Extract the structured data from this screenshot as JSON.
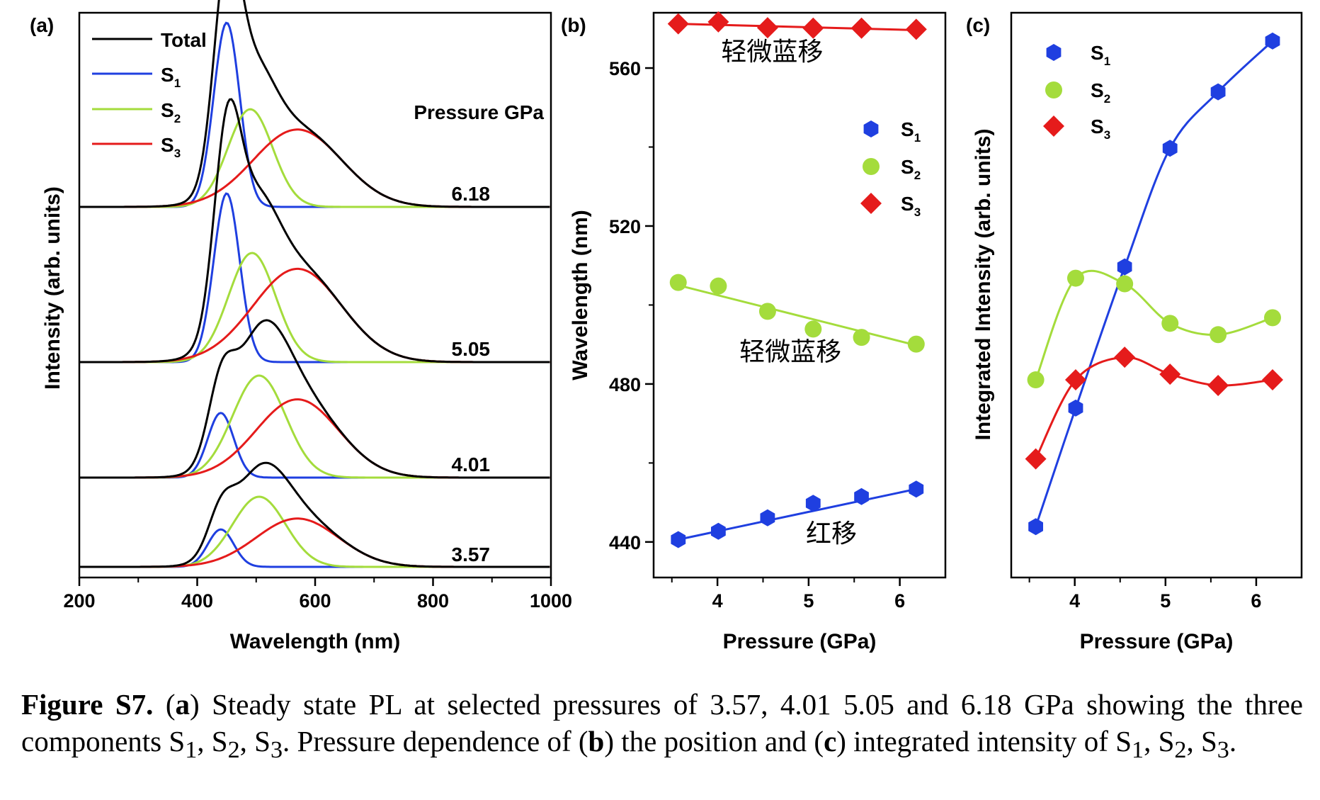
{
  "chart_data": [
    {
      "panel_label": "(a)",
      "type": "line",
      "xlabel": "Wavelength (nm)",
      "ylabel": "Intensity (arb. units)",
      "xlim": [
        200,
        1000
      ],
      "xticks": [
        "200",
        "400",
        "600",
        "800",
        "1000"
      ],
      "legend": [
        {
          "name": "Total",
          "color": "#000000"
        },
        {
          "name": "S",
          "sub": "1",
          "color": "#1f3fe0"
        },
        {
          "name": "S",
          "sub": "2",
          "color": "#a4dc3c"
        },
        {
          "name": "S",
          "sub": "3",
          "color": "#e51b1b"
        }
      ],
      "pressure_header": "Pressure GPa",
      "stacks": [
        {
          "label": "6.18",
          "components": [
            {
              "name": "S1",
              "center": 450,
              "amp": 1.0,
              "width": 22
            },
            {
              "name": "S2",
              "center": 490,
              "amp": 0.53,
              "width": 38
            },
            {
              "name": "S3",
              "center": 570,
              "amp": 0.42,
              "width": 75
            }
          ]
        },
        {
          "label": "5.05",
          "components": [
            {
              "name": "S1",
              "center": 450,
              "amp": 0.85,
              "width": 22
            },
            {
              "name": "S2",
              "center": 493,
              "amp": 0.55,
              "width": 40
            },
            {
              "name": "S3",
              "center": 570,
              "amp": 0.47,
              "width": 75
            }
          ]
        },
        {
          "label": "4.01",
          "components": [
            {
              "name": "S1",
              "center": 440,
              "amp": 0.38,
              "width": 22
            },
            {
              "name": "S2",
              "center": 505,
              "amp": 0.6,
              "width": 45
            },
            {
              "name": "S3",
              "center": 570,
              "amp": 0.46,
              "width": 70
            }
          ]
        },
        {
          "label": "3.57",
          "components": [
            {
              "name": "S1",
              "center": 440,
              "amp": 0.24,
              "width": 22
            },
            {
              "name": "S2",
              "center": 505,
              "amp": 0.45,
              "width": 45
            },
            {
              "name": "S3",
              "center": 570,
              "amp": 0.31,
              "width": 70
            }
          ]
        }
      ]
    },
    {
      "panel_label": "(b)",
      "type": "scatter",
      "xlabel": "Pressure (GPa)",
      "ylabel": "Wavelength (nm)",
      "xlim": [
        3.3,
        6.5
      ],
      "ylim": [
        431,
        574
      ],
      "xticks": [
        "4",
        "5",
        "6"
      ],
      "yticks": [
        "440",
        "480",
        "520",
        "560"
      ],
      "x": [
        3.57,
        4.01,
        4.55,
        5.05,
        5.58,
        6.18
      ],
      "series": [
        {
          "name": "S",
          "sub": "1",
          "color": "#1f3fe0",
          "marker": "hexagon",
          "values": [
            440.6,
            442.7,
            446.1,
            449.8,
            451.5,
            453.4
          ],
          "fit": [
            440.6,
            453.4
          ]
        },
        {
          "name": "S",
          "sub": "2",
          "color": "#a4dc3c",
          "marker": "circle",
          "values": [
            505.7,
            504.8,
            498.4,
            493.9,
            491.8,
            490.1
          ],
          "fit": [
            505.0,
            489.8
          ]
        },
        {
          "name": "S",
          "sub": "3",
          "color": "#e51b1b",
          "marker": "diamond",
          "values": [
            571.2,
            571.7,
            570.2,
            570.1,
            570.1,
            569.8
          ],
          "fit": [
            571.2,
            569.6
          ]
        }
      ],
      "annotations": [
        {
          "text": "轻微蓝移",
          "x": 4.6,
          "y": 562
        },
        {
          "text": "轻微蓝移",
          "x": 4.8,
          "y": 486
        },
        {
          "text": "红移",
          "x": 5.25,
          "y": 440
        }
      ]
    },
    {
      "panel_label": "(c)",
      "type": "scatter",
      "xlabel": "Pressure (GPa)",
      "ylabel": "Integrated Intensity (arb. units)",
      "xlim": [
        3.3,
        6.5
      ],
      "ylim": [
        0,
        1
      ],
      "xticks": [
        "4",
        "5",
        "6"
      ],
      "x": [
        3.57,
        4.01,
        4.55,
        5.05,
        5.58,
        6.18
      ],
      "series": [
        {
          "name": "S",
          "sub": "1",
          "color": "#1f3fe0",
          "marker": "hexagon",
          "values": [
            0.09,
            0.3,
            0.55,
            0.76,
            0.86,
            0.95
          ]
        },
        {
          "name": "S",
          "sub": "2",
          "color": "#a4dc3c",
          "marker": "circle",
          "values": [
            0.35,
            0.53,
            0.52,
            0.45,
            0.43,
            0.46
          ]
        },
        {
          "name": "S",
          "sub": "3",
          "color": "#e51b1b",
          "marker": "diamond",
          "values": [
            0.21,
            0.35,
            0.39,
            0.36,
            0.34,
            0.35
          ]
        }
      ]
    }
  ],
  "caption": {
    "title": "Figure S7.",
    "p1": "(",
    "a": "a",
    "p2": ") Steady state PL at selected pressures of 3.57, 4.01 5.05 and 6.18 GPa showing the three components S",
    "s1": "1",
    "c1": ", S",
    "s2": "2",
    "c2": ", S",
    "s3": "3",
    "p3": ". Pressure dependence of (",
    "b": "b",
    "p4": ") the position and (",
    "c": "c",
    "p5": ") integrated intensity of S",
    "t1": "1",
    "d1": ", S",
    "t2": "2",
    "d2": ", S",
    "t3": "3",
    "end": "."
  }
}
